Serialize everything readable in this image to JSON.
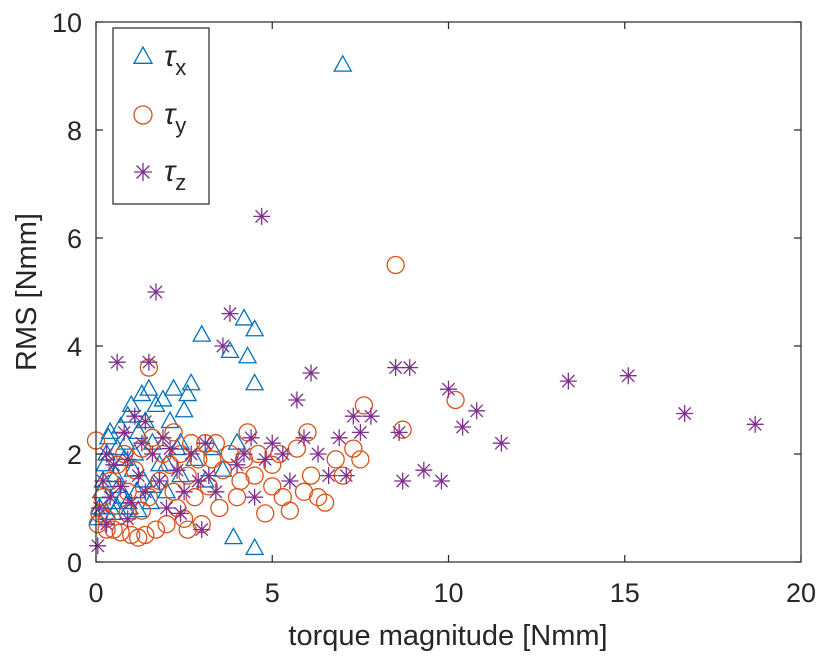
{
  "chart_data": {
    "type": "scatter",
    "xlabel": "torque magnitude [Nmm]",
    "ylabel": "RMS [Nmm]",
    "xlim": [
      0,
      20
    ],
    "ylim": [
      0,
      10
    ],
    "xticks": [
      "0",
      "5",
      "10",
      "15",
      "20"
    ],
    "yticks": [
      "0",
      "2",
      "4",
      "6",
      "8",
      "10"
    ],
    "grid": false,
    "legend_position": "top-left",
    "series": [
      {
        "name": "τx",
        "legend_symbol": "τ",
        "legend_sub": "x",
        "marker": "triangle",
        "color": "#0072BD",
        "points": [
          [
            0.05,
            0.8
          ],
          [
            0.1,
            1.0
          ],
          [
            0.15,
            1.3
          ],
          [
            0.2,
            1.5
          ],
          [
            0.25,
            1.8
          ],
          [
            0.3,
            2.0
          ],
          [
            0.35,
            2.3
          ],
          [
            0.4,
            2.4
          ],
          [
            0.45,
            1.1
          ],
          [
            0.5,
            0.9
          ],
          [
            0.55,
            1.6
          ],
          [
            0.6,
            2.1
          ],
          [
            0.65,
            1.4
          ],
          [
            0.7,
            2.5
          ],
          [
            0.75,
            1.2
          ],
          [
            0.8,
            1.9
          ],
          [
            0.85,
            2.2
          ],
          [
            0.9,
            2.7
          ],
          [
            0.95,
            1.0
          ],
          [
            1.0,
            2.9
          ],
          [
            1.05,
            1.7
          ],
          [
            1.1,
            2.0
          ],
          [
            1.15,
            1.3
          ],
          [
            1.2,
            2.4
          ],
          [
            1.3,
            3.1
          ],
          [
            1.35,
            1.5
          ],
          [
            1.4,
            2.6
          ],
          [
            1.5,
            3.2
          ],
          [
            1.55,
            1.1
          ],
          [
            1.6,
            2.2
          ],
          [
            1.7,
            2.9
          ],
          [
            1.8,
            1.8
          ],
          [
            1.9,
            3.0
          ],
          [
            2.0,
            1.3
          ],
          [
            2.1,
            2.6
          ],
          [
            2.2,
            3.2
          ],
          [
            2.3,
            2.1
          ],
          [
            2.4,
            1.6
          ],
          [
            2.5,
            2.8
          ],
          [
            2.6,
            3.1
          ],
          [
            2.7,
            3.3
          ],
          [
            2.8,
            1.9
          ],
          [
            3.0,
            4.2
          ],
          [
            3.1,
            1.5
          ],
          [
            3.3,
            2.1
          ],
          [
            3.6,
            1.7
          ],
          [
            3.8,
            3.9
          ],
          [
            4.0,
            2.2
          ],
          [
            4.2,
            4.5
          ],
          [
            4.3,
            3.8
          ],
          [
            4.5,
            4.3
          ],
          [
            4.5,
            3.3
          ],
          [
            3.9,
            0.45
          ],
          [
            4.5,
            0.25
          ],
          [
            7.0,
            9.2
          ],
          [
            0.3,
            0.9
          ],
          [
            0.6,
            1.0
          ],
          [
            0.9,
            1.1
          ],
          [
            1.2,
            0.95
          ],
          [
            1.6,
            1.4
          ],
          [
            2.0,
            1.8
          ],
          [
            2.4,
            2.2
          ]
        ]
      },
      {
        "name": "τy",
        "legend_symbol": "τ",
        "legend_sub": "y",
        "marker": "circle",
        "color": "#D95319",
        "points": [
          [
            0.0,
            2.25
          ],
          [
            0.05,
            0.7
          ],
          [
            0.1,
            0.9
          ],
          [
            0.2,
            1.2
          ],
          [
            0.3,
            0.8
          ],
          [
            0.4,
            1.5
          ],
          [
            0.5,
            0.6
          ],
          [
            0.6,
            1.8
          ],
          [
            0.7,
            0.55
          ],
          [
            0.8,
            2.0
          ],
          [
            0.9,
            1.3
          ],
          [
            1.0,
            0.5
          ],
          [
            1.1,
            1.7
          ],
          [
            1.2,
            0.45
          ],
          [
            1.3,
            2.1
          ],
          [
            1.4,
            0.5
          ],
          [
            1.5,
            1.2
          ],
          [
            1.6,
            2.3
          ],
          [
            1.7,
            0.6
          ],
          [
            1.8,
            1.5
          ],
          [
            1.9,
            2.0
          ],
          [
            2.0,
            0.7
          ],
          [
            2.1,
            1.8
          ],
          [
            2.2,
            2.4
          ],
          [
            2.3,
            1.0
          ],
          [
            2.4,
            2.0
          ],
          [
            2.5,
            0.8
          ],
          [
            2.6,
            1.6
          ],
          [
            2.7,
            2.2
          ],
          [
            2.8,
            1.2
          ],
          [
            2.9,
            1.9
          ],
          [
            3.0,
            0.7
          ],
          [
            3.1,
            2.2
          ],
          [
            3.2,
            1.4
          ],
          [
            3.3,
            1.9
          ],
          [
            3.4,
            2.2
          ],
          [
            3.6,
            1.7
          ],
          [
            3.8,
            2.0
          ],
          [
            4.0,
            1.2
          ],
          [
            4.2,
            1.9
          ],
          [
            4.3,
            2.4
          ],
          [
            4.5,
            1.6
          ],
          [
            4.6,
            2.0
          ],
          [
            4.8,
            0.9
          ],
          [
            5.0,
            1.4
          ],
          [
            5.2,
            2.0
          ],
          [
            5.3,
            1.2
          ],
          [
            5.5,
            0.95
          ],
          [
            5.7,
            2.1
          ],
          [
            5.9,
            1.3
          ],
          [
            6.1,
            1.6
          ],
          [
            6.3,
            1.2
          ],
          [
            6.5,
            1.1
          ],
          [
            6.8,
            1.9
          ],
          [
            7.0,
            1.6
          ],
          [
            7.3,
            2.1
          ],
          [
            7.5,
            1.9
          ],
          [
            7.6,
            2.9
          ],
          [
            8.5,
            5.5
          ],
          [
            8.7,
            2.45
          ],
          [
            10.2,
            3.0
          ],
          [
            1.5,
            3.6
          ],
          [
            0.3,
            0.6
          ],
          [
            0.9,
            0.9
          ],
          [
            1.3,
            0.95
          ],
          [
            2.2,
            1.3
          ],
          [
            2.6,
            0.6
          ],
          [
            3.5,
            1.0
          ],
          [
            4.1,
            1.5
          ],
          [
            5.0,
            1.8
          ],
          [
            6.0,
            2.4
          ]
        ]
      },
      {
        "name": "τz",
        "legend_symbol": "τ",
        "legend_sub": "z",
        "marker": "asterisk",
        "color": "#7E2F8E",
        "points": [
          [
            0.05,
            0.3
          ],
          [
            0.1,
            1.0
          ],
          [
            0.2,
            1.5
          ],
          [
            0.3,
            2.0
          ],
          [
            0.4,
            1.2
          ],
          [
            0.5,
            1.8
          ],
          [
            0.6,
            3.7
          ],
          [
            0.7,
            1.4
          ],
          [
            0.8,
            2.4
          ],
          [
            0.9,
            1.9
          ],
          [
            1.0,
            1.1
          ],
          [
            1.1,
            2.7
          ],
          [
            1.2,
            1.6
          ],
          [
            1.3,
            2.2
          ],
          [
            1.4,
            1.3
          ],
          [
            1.5,
            3.7
          ],
          [
            1.6,
            2.0
          ],
          [
            1.7,
            5.0
          ],
          [
            1.8,
            1.5
          ],
          [
            1.9,
            2.3
          ],
          [
            2.0,
            1.0
          ],
          [
            2.1,
            2.1
          ],
          [
            2.3,
            1.7
          ],
          [
            2.5,
            1.3
          ],
          [
            2.7,
            2.0
          ],
          [
            2.9,
            1.5
          ],
          [
            3.0,
            0.6
          ],
          [
            3.2,
            1.6
          ],
          [
            3.4,
            1.3
          ],
          [
            3.6,
            4.0
          ],
          [
            3.8,
            4.6
          ],
          [
            4.0,
            1.8
          ],
          [
            4.2,
            2.0
          ],
          [
            4.5,
            1.2
          ],
          [
            4.7,
            6.4
          ],
          [
            4.8,
            1.9
          ],
          [
            5.0,
            2.2
          ],
          [
            5.3,
            2.0
          ],
          [
            5.5,
            1.5
          ],
          [
            5.7,
            3.0
          ],
          [
            5.9,
            2.3
          ],
          [
            6.1,
            3.5
          ],
          [
            6.3,
            2.0
          ],
          [
            6.6,
            1.6
          ],
          [
            6.9,
            2.3
          ],
          [
            7.1,
            1.6
          ],
          [
            7.3,
            2.7
          ],
          [
            7.5,
            2.4
          ],
          [
            7.8,
            2.7
          ],
          [
            8.5,
            3.6
          ],
          [
            8.6,
            2.4
          ],
          [
            8.7,
            1.5
          ],
          [
            8.9,
            3.6
          ],
          [
            9.3,
            1.7
          ],
          [
            9.8,
            1.5
          ],
          [
            10.0,
            3.2
          ],
          [
            10.4,
            2.5
          ],
          [
            10.8,
            2.8
          ],
          [
            11.5,
            2.2
          ],
          [
            13.4,
            3.35
          ],
          [
            15.1,
            3.45
          ],
          [
            16.7,
            2.75
          ],
          [
            18.7,
            2.55
          ],
          [
            0.3,
            0.7
          ],
          [
            0.9,
            0.8
          ],
          [
            1.4,
            2.6
          ],
          [
            2.4,
            0.9
          ],
          [
            3.1,
            2.2
          ],
          [
            4.4,
            2.3
          ]
        ]
      }
    ]
  }
}
